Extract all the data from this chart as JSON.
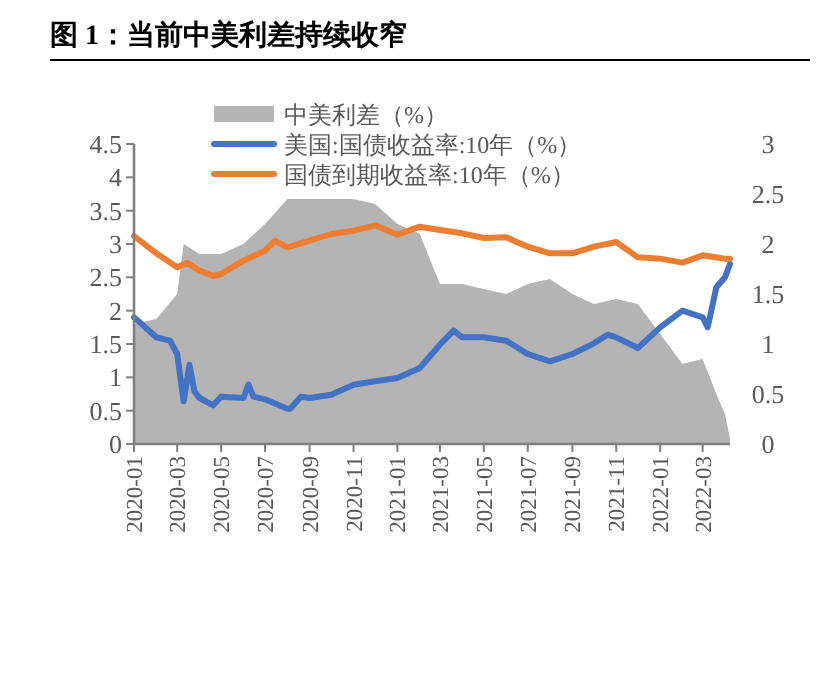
{
  "chart_data": {
    "type": "line",
    "title": "图 1：当前中美利差持续收窄",
    "xlim": [
      "2020-01-01",
      "2022-04-08"
    ],
    "xticks": [
      "2020-01",
      "2020-03",
      "2020-05",
      "2020-07",
      "2020-09",
      "2020-11",
      "2021-01",
      "2021-03",
      "2021-05",
      "2021-07",
      "2021-09",
      "2021-11",
      "2022-01",
      "2022-03"
    ],
    "ylim": [
      0,
      4.5
    ],
    "yticks": [
      0,
      0.5,
      1,
      1.5,
      2,
      2.5,
      3,
      3.5,
      4,
      4.5
    ],
    "y2lim": [
      0,
      3
    ],
    "y2ticks": [
      0,
      0.5,
      1,
      1.5,
      2,
      2.5,
      3
    ],
    "legend": "top",
    "grid": false,
    "series": [
      {
        "name": "中美利差（%）",
        "type": "area",
        "axis": "y2",
        "color": "#b4b4b4",
        "x": [
          "2020-01-01",
          "2020-02-01",
          "2020-03-01",
          "2020-03-10",
          "2020-04-01",
          "2020-05-01",
          "2020-06-01",
          "2020-07-01",
          "2020-08-01",
          "2020-09-01",
          "2020-10-01",
          "2020-11-01",
          "2020-12-01",
          "2021-01-01",
          "2021-02-01",
          "2021-03-01",
          "2021-04-01",
          "2021-05-01",
          "2021-06-01",
          "2021-07-01",
          "2021-08-01",
          "2021-09-01",
          "2021-10-01",
          "2021-11-01",
          "2021-12-01",
          "2022-01-01",
          "2022-02-01",
          "2022-03-01",
          "2022-03-20",
          "2022-04-01",
          "2022-04-08"
        ],
        "values": [
          1.2,
          1.25,
          1.5,
          2.0,
          1.9,
          1.9,
          2.0,
          2.2,
          2.45,
          2.45,
          2.45,
          2.45,
          2.4,
          2.2,
          2.1,
          1.6,
          1.6,
          1.55,
          1.5,
          1.6,
          1.65,
          1.5,
          1.4,
          1.45,
          1.4,
          1.1,
          0.8,
          0.85,
          0.5,
          0.3,
          0.05
        ]
      },
      {
        "name": "美国:国债收益率:10年（%）",
        "color": "#4472c4",
        "x": [
          "2020-01-01",
          "2020-02-01",
          "2020-02-20",
          "2020-03-01",
          "2020-03-10",
          "2020-03-18",
          "2020-03-25",
          "2020-04-01",
          "2020-04-20",
          "2020-05-01",
          "2020-06-01",
          "2020-06-08",
          "2020-06-15",
          "2020-07-01",
          "2020-08-01",
          "2020-08-05",
          "2020-08-20",
          "2020-09-01",
          "2020-10-01",
          "2020-11-01",
          "2020-12-01",
          "2021-01-01",
          "2021-02-01",
          "2021-03-01",
          "2021-03-20",
          "2021-04-01",
          "2021-05-01",
          "2021-06-01",
          "2021-07-01",
          "2021-08-01",
          "2021-09-01",
          "2021-10-01",
          "2021-10-20",
          "2021-11-01",
          "2021-12-01",
          "2022-01-01",
          "2022-02-01",
          "2022-03-01",
          "2022-03-08",
          "2022-03-20",
          "2022-04-01",
          "2022-04-08"
        ],
        "values": [
          1.9,
          1.6,
          1.55,
          1.35,
          0.64,
          1.19,
          0.79,
          0.69,
          0.58,
          0.71,
          0.69,
          0.89,
          0.71,
          0.67,
          0.53,
          0.53,
          0.71,
          0.69,
          0.74,
          0.89,
          0.94,
          0.99,
          1.14,
          1.49,
          1.7,
          1.6,
          1.6,
          1.55,
          1.35,
          1.24,
          1.35,
          1.51,
          1.64,
          1.6,
          1.44,
          1.75,
          2.0,
          1.9,
          1.75,
          2.35,
          2.5,
          2.7
        ]
      },
      {
        "name": "国债到期收益率:10年（%）",
        "color": "#ed7d31",
        "x": [
          "2020-01-01",
          "2020-02-01",
          "2020-03-01",
          "2020-03-15",
          "2020-04-01",
          "2020-04-20",
          "2020-05-01",
          "2020-06-01",
          "2020-07-01",
          "2020-07-15",
          "2020-08-01",
          "2020-09-01",
          "2020-10-01",
          "2020-11-01",
          "2020-12-01",
          "2021-01-01",
          "2021-02-01",
          "2021-03-01",
          "2021-04-01",
          "2021-05-01",
          "2021-06-01",
          "2021-07-01",
          "2021-08-01",
          "2021-09-01",
          "2021-10-01",
          "2021-11-01",
          "2021-12-01",
          "2022-01-01",
          "2022-02-01",
          "2022-03-01",
          "2022-04-01",
          "2022-04-08"
        ],
        "values": [
          3.12,
          2.86,
          2.65,
          2.72,
          2.6,
          2.52,
          2.55,
          2.75,
          2.9,
          3.05,
          2.95,
          3.05,
          3.15,
          3.2,
          3.28,
          3.14,
          3.26,
          3.21,
          3.16,
          3.09,
          3.1,
          2.96,
          2.86,
          2.86,
          2.96,
          3.03,
          2.8,
          2.78,
          2.72,
          2.83,
          2.78,
          2.78
        ]
      }
    ]
  }
}
